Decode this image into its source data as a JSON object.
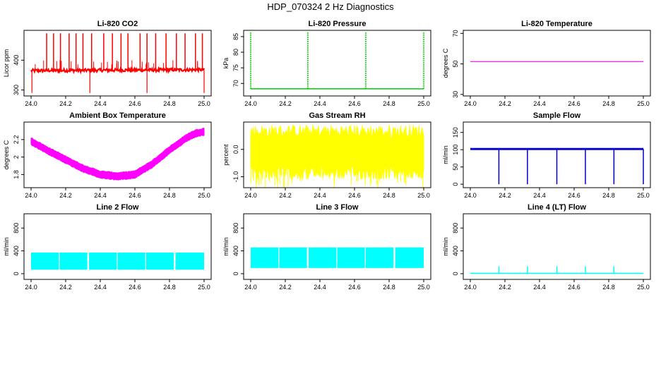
{
  "page": {
    "title": "HDP_070324  2 Hz Diagnostics"
  },
  "chart_data": [
    {
      "type": "line",
      "title": "Li-820 CO2",
      "ylabel": "Licor ppm",
      "color": "#ff0000",
      "xlim": [
        24.0,
        25.0
      ],
      "ylim": [
        280,
        500
      ],
      "xticks": [
        "24.0",
        "24.2",
        "24.4",
        "24.6",
        "24.8",
        "25.0"
      ],
      "yticks": [
        300,
        400
      ],
      "series": [
        {
          "pattern": "noisy_with_spikes",
          "x": [
            24.0,
            25.0
          ],
          "y": [
            365,
            368
          ],
          "spikes_up_x": [
            24.09,
            24.13,
            24.17,
            24.22,
            24.26,
            24.3,
            24.35,
            24.42,
            24.47,
            24.52,
            24.56,
            24.63,
            24.67,
            24.72,
            24.78,
            24.84,
            24.89,
            24.95,
            24.99
          ],
          "spike_top": 490,
          "spikes_down_x": [
            24.005,
            24.34,
            24.67,
            25.0
          ],
          "spike_bottom": 290
        }
      ]
    },
    {
      "type": "line",
      "title": "Li-820 Pressure",
      "ylabel": "kPa",
      "color": "#00cc00",
      "xlim": [
        24.0,
        25.0
      ],
      "ylim": [
        66,
        87
      ],
      "xticks": [
        "24.0",
        "24.2",
        "24.4",
        "24.6",
        "24.8",
        "25.0"
      ],
      "yticks": [
        70,
        75,
        80,
        85
      ],
      "series": [
        {
          "pattern": "flat_with_spikes",
          "x": [
            24.0,
            25.0
          ],
          "y": [
            68.3,
            68.3
          ],
          "spikes_up_x": [
            24.0,
            24.33,
            24.665,
            25.0
          ],
          "spike_top": 86.5
        }
      ]
    },
    {
      "type": "line",
      "title": "Li-820 Temperature",
      "ylabel": "degrees C",
      "color": "#ff00ff",
      "xlim": [
        24.0,
        25.0
      ],
      "ylim": [
        29,
        72
      ],
      "xticks": [
        "24.0",
        "24.2",
        "24.4",
        "24.6",
        "24.8",
        "25.0"
      ],
      "yticks": [
        30,
        50,
        70
      ],
      "series": [
        {
          "pattern": "flat",
          "x": [
            24.0,
            25.0
          ],
          "y": [
            51.5,
            51.5
          ]
        }
      ]
    },
    {
      "type": "area",
      "title": "Ambient Box Temperature",
      "ylabel": "degrees C",
      "color": "#ff00ff",
      "xlim": [
        24.0,
        25.0
      ],
      "ylim": [
        1.65,
        2.4
      ],
      "xticks": [
        "24.0",
        "24.2",
        "24.4",
        "24.6",
        "24.8",
        "25.0"
      ],
      "yticks": [
        1.8,
        2.0,
        2.2
      ],
      "series": [
        {
          "pattern": "band",
          "x": [
            24.0,
            24.1,
            24.2,
            24.3,
            24.4,
            24.5,
            24.6,
            24.7,
            24.8,
            24.9,
            24.95,
            25.0
          ],
          "y": [
            2.18,
            2.07,
            1.97,
            1.87,
            1.8,
            1.78,
            1.8,
            1.92,
            2.08,
            2.22,
            2.27,
            2.29
          ],
          "half_width": 0.035
        }
      ]
    },
    {
      "type": "area",
      "title": "Gas Stream RH",
      "ylabel": "percent",
      "color": "#ffff00",
      "xlim": [
        24.0,
        25.0
      ],
      "ylim": [
        -1.4,
        1.0
      ],
      "xticks": [
        "24.0",
        "24.2",
        "24.4",
        "24.6",
        "24.8",
        "25.0"
      ],
      "yticks": [
        -1.0,
        0.0
      ],
      "series": [
        {
          "pattern": "band",
          "x": [
            24.0,
            25.0
          ],
          "y": [
            -0.1,
            -0.1
          ],
          "half_width": 0.5,
          "spread": 0.85
        }
      ]
    },
    {
      "type": "line",
      "title": "Sample Flow",
      "ylabel": "ml/min",
      "color": "#0000cc",
      "xlim": [
        24.0,
        25.0
      ],
      "ylim": [
        -10,
        180
      ],
      "xticks": [
        "24.0",
        "24.2",
        "24.4",
        "24.6",
        "24.8",
        "25.0"
      ],
      "yticks": [
        0,
        50,
        100,
        150
      ],
      "series": [
        {
          "pattern": "flat_with_dips",
          "x": [
            24.0,
            25.0
          ],
          "y": [
            102,
            102
          ],
          "half_width": 3,
          "spikes_down_x": [
            24.165,
            24.33,
            24.5,
            24.665,
            24.83,
            25.0
          ],
          "spike_bottom": 0
        }
      ]
    },
    {
      "type": "area",
      "title": "Line 2 Flow",
      "ylabel": "ml/min",
      "color": "#00ffff",
      "xlim": [
        24.0,
        25.0
      ],
      "ylim": [
        -100,
        1050
      ],
      "xticks": [
        "24.0",
        "24.2",
        "24.4",
        "24.6",
        "24.8",
        "25.0"
      ],
      "yticks": [
        0,
        400,
        800
      ],
      "series": [
        {
          "pattern": "blocks",
          "y_low": 70,
          "y_high": 370,
          "segments": [
            [
              24.0,
              24.16
            ],
            [
              24.165,
              24.325
            ],
            [
              24.335,
              24.495
            ],
            [
              24.5,
              24.66
            ],
            [
              24.665,
              24.825
            ],
            [
              24.835,
              25.0
            ]
          ]
        }
      ]
    },
    {
      "type": "area",
      "title": "Line 3 Flow",
      "ylabel": "ml/min",
      "color": "#00ffff",
      "xlim": [
        24.0,
        25.0
      ],
      "ylim": [
        -100,
        1050
      ],
      "xticks": [
        "24.0",
        "24.2",
        "24.4",
        "24.6",
        "24.8",
        "25.0"
      ],
      "yticks": [
        0,
        400,
        800
      ],
      "series": [
        {
          "pattern": "blocks",
          "y_low": 100,
          "y_high": 460,
          "segments": [
            [
              24.0,
              24.16
            ],
            [
              24.165,
              24.325
            ],
            [
              24.335,
              24.495
            ],
            [
              24.5,
              24.66
            ],
            [
              24.665,
              24.825
            ],
            [
              24.835,
              25.0
            ]
          ]
        }
      ]
    },
    {
      "type": "line",
      "title": "Line 4 (LT) Flow",
      "ylabel": "ml/min",
      "color": "#00ffff",
      "xlim": [
        24.0,
        25.0
      ],
      "ylim": [
        -100,
        1050
      ],
      "xticks": [
        "24.0",
        "24.2",
        "24.4",
        "24.6",
        "24.8",
        "25.0"
      ],
      "yticks": [
        0,
        400,
        800
      ],
      "series": [
        {
          "pattern": "flat_with_spikes",
          "x": [
            24.0,
            25.0
          ],
          "y": [
            5,
            5
          ],
          "spikes_up_x": [
            24.165,
            24.33,
            24.5,
            24.665,
            24.83
          ],
          "spike_top": 130
        }
      ]
    }
  ]
}
